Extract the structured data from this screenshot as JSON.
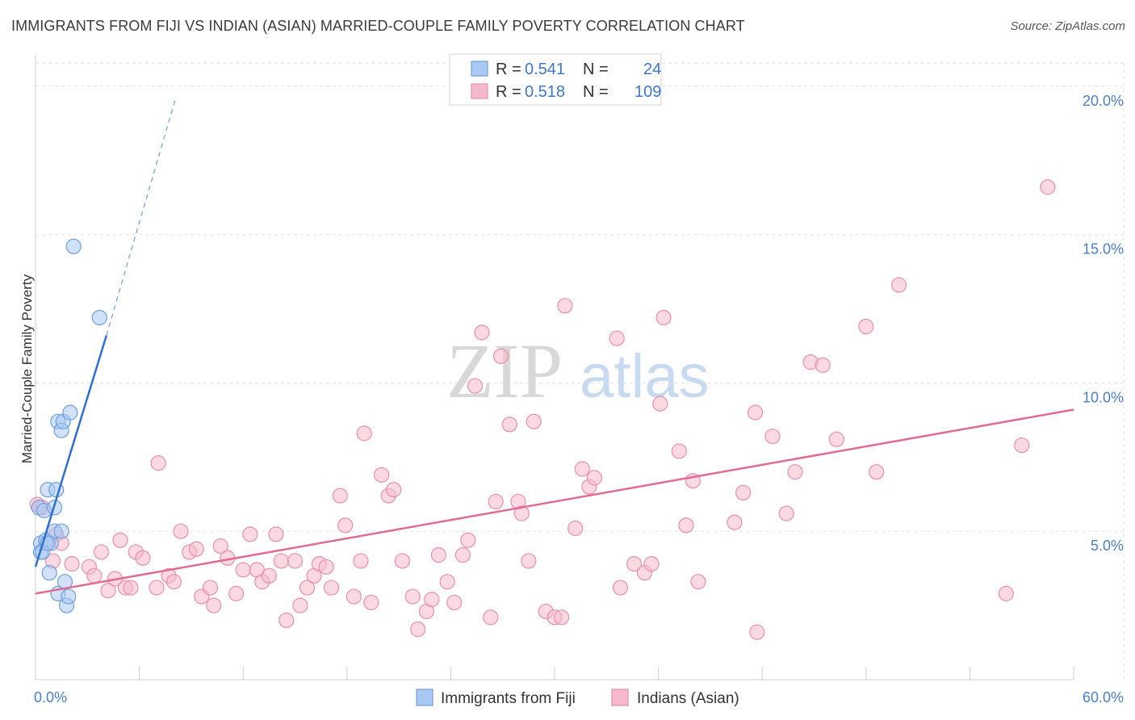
{
  "title": "IMMIGRANTS FROM FIJI VS INDIAN (ASIAN) MARRIED-COUPLE FAMILY POVERTY CORRELATION CHART",
  "source": "Source: ZipAtlas.com",
  "watermark": {
    "zip": "ZIP",
    "atlas": "atlas"
  },
  "colors": {
    "fiji_fill": "#a9c9f2",
    "fiji_stroke": "#6f9fdc",
    "fiji_line": "#2e6fcf",
    "indian_fill": "#f6b9cb",
    "indian_stroke": "#e98fab",
    "indian_line": "#e06c96",
    "grid": "#e2e2e2",
    "tick_label": "#4a7fc7"
  },
  "chart_data": {
    "type": "scatter",
    "title": "IMMIGRANTS FROM FIJI VS INDIAN (ASIAN) MARRIED-COUPLE FAMILY POVERTY CORRELATION CHART",
    "xlabel": "",
    "ylabel": "Married-Couple Family Poverty",
    "xlim": [
      0,
      60
    ],
    "ylim": [
      0,
      21
    ],
    "x_tick_labels": [
      "0.0%",
      "60.0%"
    ],
    "y_ticks": [
      5,
      10,
      15,
      20
    ],
    "y_tick_labels": [
      "5.0%",
      "10.0%",
      "15.0%",
      "20.0%"
    ],
    "legend": {
      "position": "top-center",
      "rows": [
        {
          "r_label": "R = ",
          "r_value": "0.541",
          "n_label": "N = ",
          "n_value": "24"
        },
        {
          "r_label": "R = ",
          "r_value": "0.518",
          "n_label": "N = ",
          "n_value": "109"
        }
      ]
    },
    "series": [
      {
        "name": "Immigrants from Fiji",
        "trend": {
          "x0": 0,
          "y0": 3.8,
          "x1": 4.1,
          "y1": 11.6,
          "dash_x1": 8.1,
          "dash_y1": 19.6
        },
        "points": [
          [
            0.2,
            5.8
          ],
          [
            0.3,
            4.6
          ],
          [
            0.3,
            4.3
          ],
          [
            0.5,
            5.7
          ],
          [
            0.6,
            4.7
          ],
          [
            0.7,
            6.4
          ],
          [
            0.8,
            3.6
          ],
          [
            0.9,
            4.6
          ],
          [
            1.1,
            5.0
          ],
          [
            1.1,
            5.8
          ],
          [
            1.2,
            6.4
          ],
          [
            1.3,
            8.7
          ],
          [
            1.3,
            2.9
          ],
          [
            1.5,
            5.0
          ],
          [
            1.5,
            8.4
          ],
          [
            1.6,
            8.7
          ],
          [
            1.7,
            3.3
          ],
          [
            1.8,
            2.5
          ],
          [
            1.9,
            2.8
          ],
          [
            2.0,
            9.0
          ],
          [
            2.2,
            14.6
          ],
          [
            3.7,
            12.2
          ],
          [
            0.4,
            4.3
          ],
          [
            0.7,
            4.6
          ]
        ]
      },
      {
        "name": "Indians (Asian)",
        "trend": {
          "x0": 0,
          "y0": 2.9,
          "x1": 60,
          "y1": 9.1
        },
        "points": [
          [
            0.1,
            5.9
          ],
          [
            0.4,
            5.8
          ],
          [
            0.6,
            4.6
          ],
          [
            1.0,
            4.0
          ],
          [
            1.2,
            4.9
          ],
          [
            1.5,
            4.6
          ],
          [
            2.1,
            3.9
          ],
          [
            3.1,
            3.8
          ],
          [
            3.4,
            3.5
          ],
          [
            3.8,
            4.3
          ],
          [
            4.2,
            3.0
          ],
          [
            4.6,
            3.4
          ],
          [
            4.9,
            4.7
          ],
          [
            5.2,
            3.1
          ],
          [
            5.5,
            3.1
          ],
          [
            5.8,
            4.3
          ],
          [
            6.2,
            4.1
          ],
          [
            7.0,
            3.1
          ],
          [
            7.1,
            7.3
          ],
          [
            7.7,
            3.5
          ],
          [
            8.0,
            3.3
          ],
          [
            8.4,
            5.0
          ],
          [
            8.9,
            4.3
          ],
          [
            9.3,
            4.4
          ],
          [
            9.6,
            2.8
          ],
          [
            10.1,
            3.1
          ],
          [
            10.3,
            2.5
          ],
          [
            10.7,
            4.5
          ],
          [
            11.1,
            4.1
          ],
          [
            11.6,
            2.9
          ],
          [
            12.0,
            3.7
          ],
          [
            12.4,
            4.9
          ],
          [
            12.8,
            3.7
          ],
          [
            13.1,
            3.3
          ],
          [
            13.5,
            3.5
          ],
          [
            13.9,
            4.9
          ],
          [
            14.2,
            4.0
          ],
          [
            14.5,
            2.0
          ],
          [
            15.0,
            4.0
          ],
          [
            15.3,
            2.5
          ],
          [
            15.7,
            3.1
          ],
          [
            16.1,
            3.5
          ],
          [
            16.4,
            3.9
          ],
          [
            16.8,
            3.8
          ],
          [
            17.1,
            3.1
          ],
          [
            17.6,
            6.2
          ],
          [
            17.9,
            5.2
          ],
          [
            18.4,
            2.8
          ],
          [
            18.8,
            4.0
          ],
          [
            19.0,
            8.3
          ],
          [
            19.4,
            2.6
          ],
          [
            20.0,
            6.9
          ],
          [
            20.4,
            6.2
          ],
          [
            20.7,
            6.4
          ],
          [
            21.2,
            4.0
          ],
          [
            21.8,
            2.8
          ],
          [
            22.1,
            1.7
          ],
          [
            22.6,
            2.3
          ],
          [
            22.9,
            2.7
          ],
          [
            23.3,
            4.2
          ],
          [
            23.8,
            3.3
          ],
          [
            24.2,
            2.6
          ],
          [
            24.7,
            4.2
          ],
          [
            25.0,
            4.7
          ],
          [
            25.4,
            9.9
          ],
          [
            25.8,
            11.7
          ],
          [
            26.3,
            2.1
          ],
          [
            26.6,
            6.0
          ],
          [
            26.9,
            10.9
          ],
          [
            27.4,
            8.6
          ],
          [
            27.9,
            6.0
          ],
          [
            28.1,
            5.6
          ],
          [
            28.5,
            4.0
          ],
          [
            28.8,
            8.7
          ],
          [
            29.5,
            2.3
          ],
          [
            30.0,
            2.1
          ],
          [
            30.4,
            2.1
          ],
          [
            30.6,
            12.6
          ],
          [
            31.2,
            5.1
          ],
          [
            31.6,
            7.1
          ],
          [
            32.0,
            6.5
          ],
          [
            32.3,
            6.8
          ],
          [
            33.6,
            11.5
          ],
          [
            33.8,
            3.1
          ],
          [
            34.6,
            3.9
          ],
          [
            35.2,
            3.6
          ],
          [
            35.6,
            3.9
          ],
          [
            36.1,
            9.3
          ],
          [
            36.3,
            12.2
          ],
          [
            37.2,
            7.7
          ],
          [
            37.6,
            5.2
          ],
          [
            38.0,
            6.7
          ],
          [
            38.3,
            3.3
          ],
          [
            40.4,
            5.3
          ],
          [
            40.9,
            6.3
          ],
          [
            41.7,
            1.6
          ],
          [
            41.6,
            9.0
          ],
          [
            42.6,
            8.2
          ],
          [
            43.4,
            5.6
          ],
          [
            43.9,
            7.0
          ],
          [
            44.8,
            10.7
          ],
          [
            45.5,
            10.6
          ],
          [
            46.3,
            8.1
          ],
          [
            48.0,
            11.9
          ],
          [
            48.6,
            7.0
          ],
          [
            49.9,
            13.3
          ],
          [
            56.1,
            2.9
          ],
          [
            57.0,
            7.9
          ],
          [
            58.5,
            16.6
          ]
        ]
      }
    ]
  }
}
